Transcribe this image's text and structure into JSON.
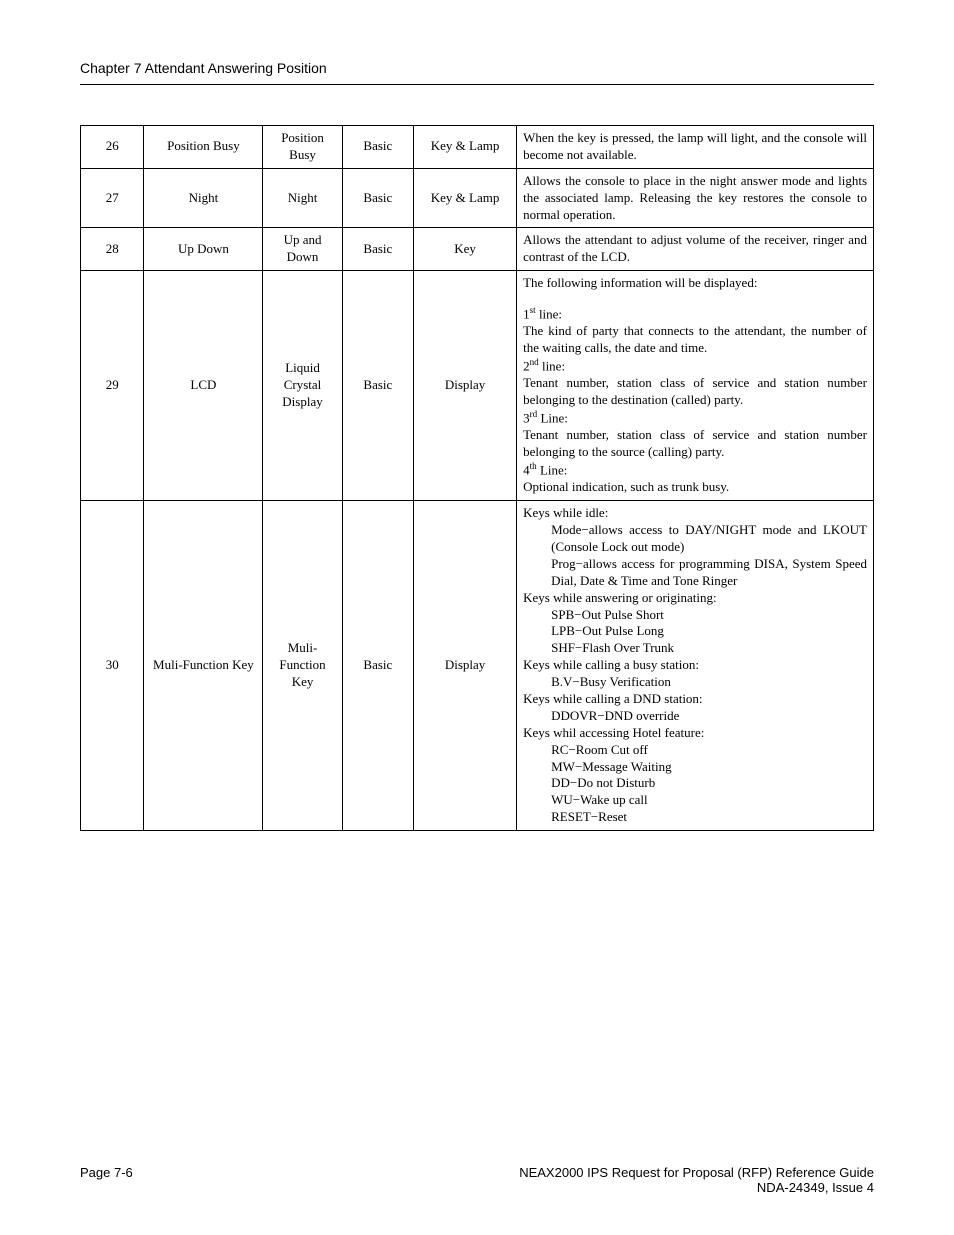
{
  "header": {
    "chapter": "Chapter 7   Attendant Answering Position"
  },
  "rows": {
    "r26": {
      "num": "26",
      "name": "Position Busy",
      "key": "Position Busy",
      "cat": "Basic",
      "type": "Key & Lamp",
      "desc": "When the key is pressed, the lamp will light, and the console will become not available."
    },
    "r27": {
      "num": "27",
      "name": "Night",
      "key": "Night",
      "cat": "Basic",
      "type": "Key & Lamp",
      "desc": "Allows the console to place in the night answer mode and lights the associated lamp. Releasing the key restores the console to normal operation."
    },
    "r28": {
      "num": "28",
      "name": "Up Down",
      "key": "Up and Down",
      "cat": "Basic",
      "type": "Key",
      "desc": "Allows the attendant to adjust volume of the receiver, ringer and contrast of the LCD."
    },
    "r29": {
      "num": "29",
      "name": "LCD",
      "key": "Liquid Crystal Display",
      "cat": "Basic",
      "type": "Display",
      "intro": "The following information will be displayed:",
      "l1h": "1",
      "l1s": "st",
      "l1t": " line:",
      "l1b": "The kind of party that connects to the attendant, the number of the waiting calls, the date and time.",
      "l2h": "2",
      "l2s": "nd",
      "l2t": " line:",
      "l2b": "Tenant number, station class of service and station number belonging to the destination (called) party.",
      "l3h": "3",
      "l3s": "rd",
      "l3t": " Line:",
      "l3b": "Tenant number, station class of service and station number belonging to the source (calling) party.",
      "l4h": "4",
      "l4s": "th",
      "l4t": " Line:",
      "l4b": "Optional indication, such as trunk busy."
    },
    "r30": {
      "num": "30",
      "name": "Muli-Function Key",
      "key": "Muli-Function Key",
      "cat": "Basic",
      "type": "Display",
      "h1": "Keys while idle:",
      "i1a": "Mode−allows access to DAY/NIGHT mode and LKOUT (Console Lock out mode)",
      "i1b": "Prog−allows access for programming DISA, System Speed Dial, Date & Time and Tone Ringer",
      "h2": "Keys while answering or originating:",
      "i2a": "SPB−Out Pulse Short",
      "i2b": "LPB−Out Pulse Long",
      "i2c": "SHF−Flash Over Trunk",
      "h3": "Keys while calling a busy station:",
      "i3a": "B.V−Busy Verification",
      "h4": "Keys while calling a DND station:",
      "i4a": "DDOVR−DND override",
      "h5": "Keys whil accessing Hotel feature:",
      "i5a": "RC−Room Cut off",
      "i5b": "MW−Message Waiting",
      "i5c": "DD−Do not Disturb",
      "i5d": "WU−Wake up call",
      "i5e": "RESET−Reset"
    }
  },
  "footer": {
    "page": "Page 7-6",
    "title": "NEAX2000 IPS Request for Proposal (RFP) Reference Guide",
    "issue": "NDA-24349, Issue 4"
  }
}
